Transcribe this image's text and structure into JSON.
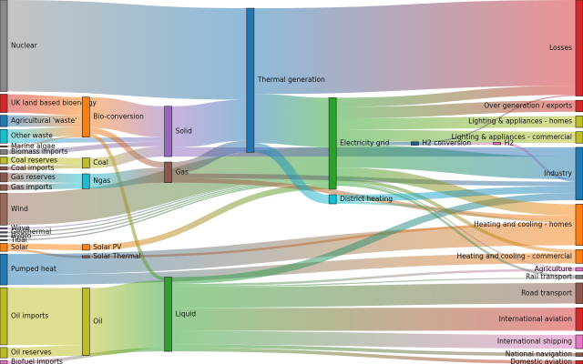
{
  "chart_data": {
    "type": "sankey",
    "nodes": [
      {
        "name": "Nuclear",
        "color": "#8a8a8a"
      },
      {
        "name": "UK land based bioenergy",
        "color": "#d62728"
      },
      {
        "name": "Agricultural 'waste'",
        "color": "#1f77b4"
      },
      {
        "name": "Other waste",
        "color": "#17becf"
      },
      {
        "name": "Marine algae",
        "color": "#8c564b"
      },
      {
        "name": "Biomass imports",
        "color": "#7f7f7f"
      },
      {
        "name": "Coal reserves",
        "color": "#bcbd22"
      },
      {
        "name": "Coal imports",
        "color": "#8c564b"
      },
      {
        "name": "Gas reserves",
        "color": "#8c564b"
      },
      {
        "name": "Gas imports",
        "color": "#8c564b"
      },
      {
        "name": "Wind",
        "color": "#9a6a5a"
      },
      {
        "name": "Wave",
        "color": "#9467bd"
      },
      {
        "name": "Geothermal",
        "color": "#555555"
      },
      {
        "name": "Hydro",
        "color": "#555555"
      },
      {
        "name": "Tidal",
        "color": "#555555"
      },
      {
        "name": "Solar",
        "color": "#ff7f0e"
      },
      {
        "name": "Pumped heat",
        "color": "#1f77b4"
      },
      {
        "name": "Oil imports",
        "color": "#bcbd22"
      },
      {
        "name": "Oil reserves",
        "color": "#bcbd22"
      },
      {
        "name": "Biofuel imports",
        "color": "#e377c2"
      },
      {
        "name": "Bio-conversion",
        "color": "#ff7f0e"
      },
      {
        "name": "Coal",
        "color": "#bcbd22"
      },
      {
        "name": "Ngas",
        "color": "#17becf"
      },
      {
        "name": "Solar PV",
        "color": "#ff7f0e"
      },
      {
        "name": "Solar Thermal",
        "color": "#8c564b"
      },
      {
        "name": "Oil",
        "color": "#bcbd22"
      },
      {
        "name": "Solid",
        "color": "#9467bd"
      },
      {
        "name": "Gas",
        "color": "#8c564b"
      },
      {
        "name": "Liquid",
        "color": "#2ca02c"
      },
      {
        "name": "Thermal generation",
        "color": "#1f77b4"
      },
      {
        "name": "Electricity grid",
        "color": "#2ca02c"
      },
      {
        "name": "District heating",
        "color": "#17becf"
      },
      {
        "name": "H2 conversion",
        "color": "#1f5f8b"
      },
      {
        "name": "H2",
        "color": "#e377c2"
      },
      {
        "name": "Losses",
        "color": "#d62728"
      },
      {
        "name": "Over generation / exports",
        "color": "#d62728"
      },
      {
        "name": "Lighting & appliances - homes",
        "color": "#bcbd22"
      },
      {
        "name": "Lighting & appliances - commercial",
        "color": "#bcbd22"
      },
      {
        "name": "Industry",
        "color": "#1f77b4"
      },
      {
        "name": "Heating and cooling - homes",
        "color": "#ff7f0e"
      },
      {
        "name": "Heating and cooling - commercial",
        "color": "#ff7f0e"
      },
      {
        "name": "Agriculture",
        "color": "#e377c2"
      },
      {
        "name": "Rail transport",
        "color": "#7f7f7f"
      },
      {
        "name": "Road transport",
        "color": "#8c564b"
      },
      {
        "name": "International aviation",
        "color": "#d62728"
      },
      {
        "name": "International shipping",
        "color": "#e377c2"
      },
      {
        "name": "National navigation",
        "color": "#8c564b"
      },
      {
        "name": "Domestic aviation",
        "color": "#d62728"
      }
    ],
    "links": [
      {
        "source": 0,
        "target": 29,
        "value": 80
      },
      {
        "source": 1,
        "target": 20,
        "value": 16
      },
      {
        "source": 2,
        "target": 20,
        "value": 10
      },
      {
        "source": 3,
        "target": 20,
        "value": 8
      },
      {
        "source": 3,
        "target": 26,
        "value": 4
      },
      {
        "source": 4,
        "target": 20,
        "value": 1
      },
      {
        "source": 5,
        "target": 26,
        "value": 4
      },
      {
        "source": 6,
        "target": 21,
        "value": 6
      },
      {
        "source": 7,
        "target": 21,
        "value": 3
      },
      {
        "source": 8,
        "target": 22,
        "value": 8
      },
      {
        "source": 9,
        "target": 22,
        "value": 5
      },
      {
        "source": 10,
        "target": 30,
        "value": 28
      },
      {
        "source": 11,
        "target": 30,
        "value": 1
      },
      {
        "source": 12,
        "target": 30,
        "value": 1
      },
      {
        "source": 13,
        "target": 30,
        "value": 1
      },
      {
        "source": 14,
        "target": 30,
        "value": 1
      },
      {
        "source": 15,
        "target": 23,
        "value": 5
      },
      {
        "source": 15,
        "target": 24,
        "value": 2
      },
      {
        "source": 16,
        "target": 39,
        "value": 18
      },
      {
        "source": 16,
        "target": 40,
        "value": 9
      },
      {
        "source": 17,
        "target": 25,
        "value": 50
      },
      {
        "source": 18,
        "target": 25,
        "value": 9
      },
      {
        "source": 19,
        "target": 28,
        "value": 3
      },
      {
        "source": 20,
        "target": 26,
        "value": 27
      },
      {
        "source": 20,
        "target": 27,
        "value": 5
      },
      {
        "source": 20,
        "target": 28,
        "value": 3
      },
      {
        "source": 21,
        "target": 26,
        "value": 9
      },
      {
        "source": 22,
        "target": 27,
        "value": 13
      },
      {
        "source": 23,
        "target": 30,
        "value": 5
      },
      {
        "source": 24,
        "target": 39,
        "value": 2
      },
      {
        "source": 25,
        "target": 28,
        "value": 59
      },
      {
        "source": 26,
        "target": 29,
        "value": 36
      },
      {
        "source": 26,
        "target": 38,
        "value": 8
      },
      {
        "source": 27,
        "target": 29,
        "value": 10
      },
      {
        "source": 27,
        "target": 38,
        "value": 4
      },
      {
        "source": 27,
        "target": 39,
        "value": 4
      },
      {
        "source": 28,
        "target": 38,
        "value": 6
      },
      {
        "source": 28,
        "target": 43,
        "value": 18
      },
      {
        "source": 28,
        "target": 44,
        "value": 20
      },
      {
        "source": 28,
        "target": 45,
        "value": 12
      },
      {
        "source": 28,
        "target": 46,
        "value": 3
      },
      {
        "source": 28,
        "target": 47,
        "value": 3
      },
      {
        "source": 28,
        "target": 41,
        "value": 2
      },
      {
        "source": 28,
        "target": 42,
        "value": 1
      },
      {
        "source": 29,
        "target": 34,
        "value": 75
      },
      {
        "source": 29,
        "target": 30,
        "value": 43
      },
      {
        "source": 29,
        "target": 31,
        "value": 8
      },
      {
        "source": 30,
        "target": 34,
        "value": 8
      },
      {
        "source": 30,
        "target": 35,
        "value": 10
      },
      {
        "source": 30,
        "target": 36,
        "value": 10
      },
      {
        "source": 30,
        "target": 37,
        "value": 10
      },
      {
        "source": 30,
        "target": 38,
        "value": 20
      },
      {
        "source": 30,
        "target": 39,
        "value": 10
      },
      {
        "source": 30,
        "target": 40,
        "value": 3
      },
      {
        "source": 30,
        "target": 32,
        "value": 3
      },
      {
        "source": 30,
        "target": 42,
        "value": 2
      },
      {
        "source": 30,
        "target": 41,
        "value": 1
      },
      {
        "source": 31,
        "target": 38,
        "value": 6
      },
      {
        "source": 31,
        "target": 39,
        "value": 2
      },
      {
        "source": 32,
        "target": 33,
        "value": 2
      },
      {
        "source": 32,
        "target": 34,
        "value": 1
      },
      {
        "source": 33,
        "target": 38,
        "value": 2
      }
    ]
  }
}
